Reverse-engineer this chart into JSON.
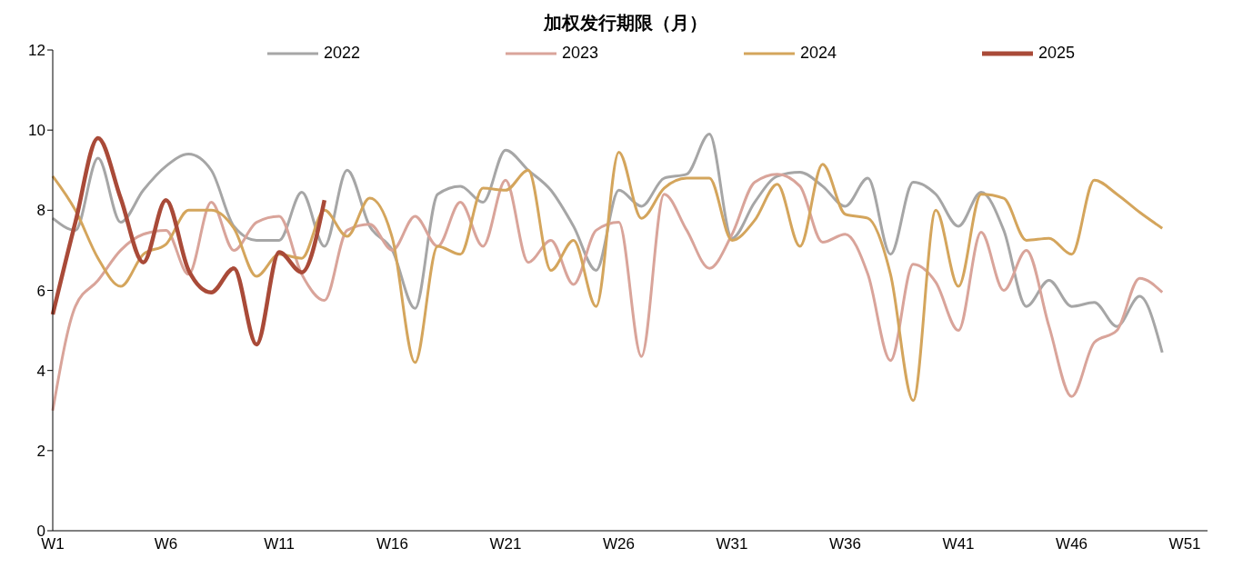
{
  "chart_data": {
    "type": "line",
    "title": "加权发行期限（月）",
    "categories": [
      "W1",
      null,
      null,
      null,
      null,
      "W6",
      null,
      null,
      null,
      null,
      "W11",
      null,
      null,
      null,
      null,
      "W16",
      null,
      null,
      null,
      null,
      "W21",
      null,
      null,
      null,
      null,
      "W26",
      null,
      null,
      null,
      null,
      "W31",
      null,
      null,
      null,
      null,
      "W36",
      null,
      null,
      null,
      null,
      "W41",
      null,
      null,
      null,
      null,
      "W46",
      null,
      null,
      null,
      null,
      "W51",
      null
    ],
    "series": [
      {
        "name": "2022",
        "color": "#a6a6a6",
        "values": [
          7.8,
          7.5,
          9.3,
          7.7,
          8.5,
          9.1,
          9.4,
          9.0,
          7.6,
          7.25,
          7.25,
          8.45,
          7.1,
          9.0,
          7.6,
          7.0,
          5.55,
          8.4,
          8.6,
          8.2,
          9.5,
          9.0,
          8.5,
          7.6,
          6.5,
          8.5,
          8.1,
          8.8,
          8.9,
          9.9,
          7.3,
          8.2,
          8.85,
          8.95,
          8.6,
          8.1,
          8.8,
          6.9,
          8.7,
          8.4,
          7.6,
          8.45,
          7.5,
          5.6,
          6.25,
          5.6,
          5.7,
          5.1,
          5.85,
          4.45,
          null,
          null
        ]
      },
      {
        "name": "2023",
        "color": "#d9a49a",
        "values": [
          3.0,
          5.6,
          6.25,
          7.0,
          7.4,
          7.5,
          6.4,
          8.2,
          7.0,
          7.7,
          7.85,
          6.4,
          5.75,
          7.5,
          7.65,
          7.0,
          7.85,
          7.1,
          8.2,
          7.1,
          8.75,
          6.7,
          7.25,
          6.15,
          7.5,
          7.7,
          4.35,
          8.4,
          7.5,
          6.55,
          7.4,
          8.7,
          8.9,
          8.6,
          7.2,
          7.4,
          6.4,
          4.25,
          6.65,
          6.2,
          5.0,
          7.45,
          6.0,
          7.0,
          5.1,
          3.35,
          4.7,
          5.0,
          6.3,
          5.95,
          null,
          null
        ]
      },
      {
        "name": "2024",
        "color": "#d4a55c",
        "values": [
          8.85,
          8.0,
          6.8,
          6.1,
          6.9,
          7.15,
          8.0,
          8.0,
          7.55,
          6.35,
          6.9,
          6.8,
          8.0,
          7.35,
          8.3,
          7.3,
          4.2,
          7.1,
          6.9,
          8.55,
          8.5,
          9.0,
          6.5,
          7.25,
          5.6,
          9.45,
          7.8,
          8.55,
          8.8,
          8.8,
          7.25,
          7.75,
          8.65,
          7.1,
          9.15,
          7.9,
          7.8,
          6.4,
          3.25,
          8.0,
          6.1,
          8.4,
          8.3,
          7.25,
          7.3,
          6.9,
          8.75,
          8.4,
          7.95,
          7.55,
          null,
          null
        ]
      },
      {
        "name": "2025",
        "color": "#a94a38",
        "values": [
          5.4,
          7.7,
          9.8,
          8.3,
          6.7,
          8.25,
          6.5,
          5.95,
          6.55,
          4.65,
          6.95,
          6.45,
          8.25,
          null,
          null,
          null,
          null,
          null,
          null,
          null,
          null,
          null,
          null,
          null,
          null,
          null,
          null,
          null,
          null,
          null,
          null,
          null,
          null,
          null,
          null,
          null,
          null,
          null,
          null,
          null,
          null,
          null,
          null,
          null,
          null,
          null,
          null,
          null,
          null,
          null,
          null,
          null
        ]
      }
    ],
    "ylim": [
      0,
      12
    ],
    "yticks": [
      0,
      2,
      4,
      6,
      8,
      10,
      12
    ],
    "grid": false,
    "legend": "top",
    "marker": "none",
    "line_style": "solid"
  }
}
